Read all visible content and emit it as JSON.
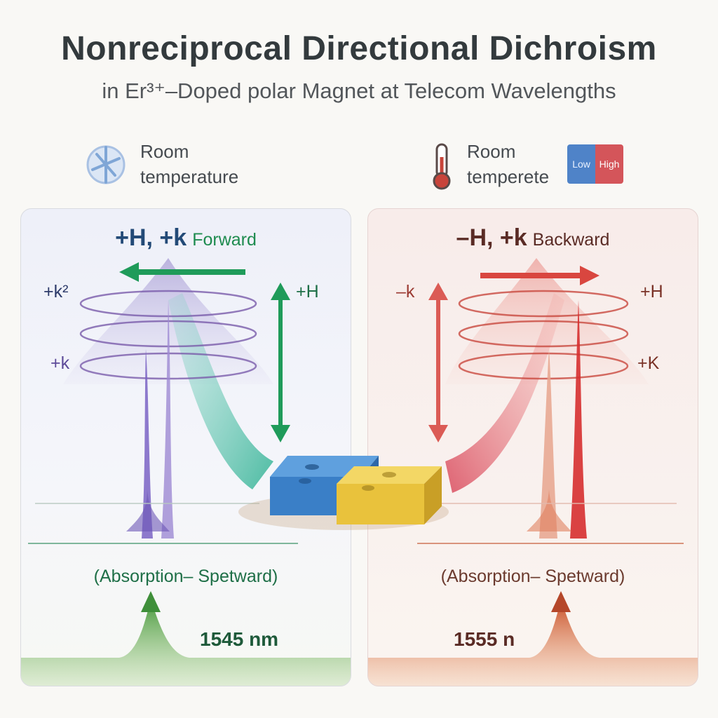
{
  "title": "Nonreciprocal Directional Dichroism",
  "subtitle": "in Er³⁺–Doped polar Magnet at Telecom Wavelengths",
  "header_left": {
    "icon": "snowflake-icon",
    "line1": "Room",
    "line2": "temperature"
  },
  "header_right": {
    "icon": "thermometer-icon",
    "line1": "Room",
    "line2": "temperete",
    "legend_low": "Low",
    "legend_high": "High"
  },
  "panel_left": {
    "title_main": "+H, +k",
    "title_dir": "Forward",
    "label_k_top": "+k²",
    "label_k_mid": "+k",
    "label_h": "+H",
    "caption": "(Absorption– Spetward)",
    "wavelength": "1545 nm",
    "accent": "#1e8b4f",
    "title_color": "#234a77"
  },
  "panel_right": {
    "title_main": "–H, +k",
    "title_dir": "Backward",
    "label_k_top": "–k",
    "label_k_mid": "+K",
    "label_h": "+H",
    "caption": "(Absorption– Spetward)",
    "wavelength": "1555 n",
    "accent": "#d9493f",
    "title_color": "#5a2b25"
  }
}
